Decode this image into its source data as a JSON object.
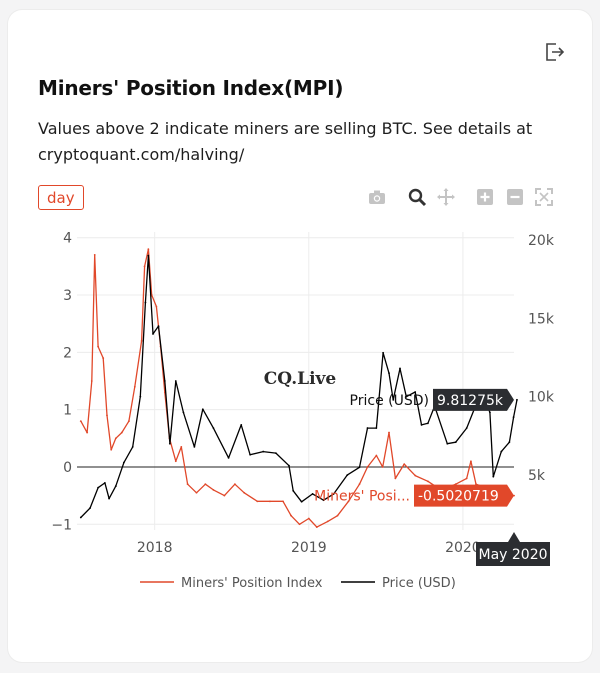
{
  "card": {
    "title": "Miners' Position Index(MPI)",
    "subtitle": "Values above 2 indicate miners are selling BTC. See details at cryptoquant.com/halving/",
    "interval_label": "day",
    "icons": [
      "export-icon",
      "camera-icon",
      "zoom-icon",
      "pan-icon",
      "zoom-in-icon",
      "zoom-out-icon",
      "autoscale-icon"
    ]
  },
  "watermark": "CQ.Live",
  "hover": {
    "price_label": "Price (USD)",
    "price_value": "9.81275k",
    "mpi_label": "Miners' Posi...",
    "mpi_value": "-0.5020719",
    "x_label": "May 2020"
  },
  "colors": {
    "mpi": "#e1482a",
    "price": "#000000",
    "hover_bg": "#2b2d31",
    "accent": "#e1482a"
  },
  "chart_data": {
    "type": "line",
    "x_range": [
      "2017-07",
      "2020-05"
    ],
    "x_ticks": [
      "2018",
      "2019",
      "2020"
    ],
    "y_left": {
      "range": [
        -1.1,
        4.1
      ],
      "ticks": [
        "4",
        "3",
        "2",
        "1",
        "0",
        "−1"
      ],
      "tick_values": [
        4,
        3,
        2,
        1,
        0,
        -1
      ]
    },
    "y_right": {
      "range": [
        1500,
        20500
      ],
      "ticks": [
        "20k",
        "15k",
        "10k",
        "5k"
      ],
      "tick_values": [
        20000,
        15000,
        10000,
        5000
      ]
    },
    "legend": "bottom",
    "series": [
      {
        "name": "Miners' Position Index",
        "axis": "left",
        "points": [
          [
            "2017-07-10",
            0.8
          ],
          [
            "2017-07-25",
            0.6
          ],
          [
            "2017-08-05",
            1.5
          ],
          [
            "2017-08-12",
            3.7
          ],
          [
            "2017-08-20",
            2.1
          ],
          [
            "2017-09-01",
            1.9
          ],
          [
            "2017-09-10",
            0.9
          ],
          [
            "2017-09-20",
            0.3
          ],
          [
            "2017-10-01",
            0.5
          ],
          [
            "2017-10-15",
            0.6
          ],
          [
            "2017-11-01",
            0.8
          ],
          [
            "2017-11-15",
            1.4
          ],
          [
            "2017-12-01",
            2.2
          ],
          [
            "2017-12-08",
            3.5
          ],
          [
            "2017-12-17",
            3.8
          ],
          [
            "2017-12-25",
            3.0
          ],
          [
            "2018-01-05",
            2.8
          ],
          [
            "2018-01-15",
            2.1
          ],
          [
            "2018-01-25",
            1.3
          ],
          [
            "2018-02-05",
            0.5
          ],
          [
            "2018-02-20",
            0.1
          ],
          [
            "2018-03-05",
            0.35
          ],
          [
            "2018-03-20",
            -0.3
          ],
          [
            "2018-04-10",
            -0.45
          ],
          [
            "2018-05-01",
            -0.3
          ],
          [
            "2018-05-20",
            -0.4
          ],
          [
            "2018-06-15",
            -0.5
          ],
          [
            "2018-07-10",
            -0.3
          ],
          [
            "2018-08-01",
            -0.45
          ],
          [
            "2018-09-01",
            -0.6
          ],
          [
            "2018-10-01",
            -0.6
          ],
          [
            "2018-11-01",
            -0.6
          ],
          [
            "2018-11-20",
            -0.85
          ],
          [
            "2018-12-10",
            -1.0
          ],
          [
            "2019-01-01",
            -0.9
          ],
          [
            "2019-01-20",
            -1.05
          ],
          [
            "2019-02-15",
            -0.95
          ],
          [
            "2019-03-10",
            -0.85
          ],
          [
            "2019-04-05",
            -0.6
          ],
          [
            "2019-05-01",
            -0.3
          ],
          [
            "2019-05-20",
            0.0
          ],
          [
            "2019-06-10",
            0.2
          ],
          [
            "2019-06-25",
            0.0
          ],
          [
            "2019-07-10",
            0.6
          ],
          [
            "2019-07-25",
            -0.2
          ],
          [
            "2019-08-15",
            0.05
          ],
          [
            "2019-09-10",
            -0.15
          ],
          [
            "2019-10-10",
            -0.25
          ],
          [
            "2019-11-10",
            -0.4
          ],
          [
            "2019-12-15",
            -0.3
          ],
          [
            "2020-01-10",
            -0.2
          ],
          [
            "2020-01-20",
            0.1
          ],
          [
            "2020-02-01",
            -0.3
          ],
          [
            "2020-02-20",
            -0.35
          ],
          [
            "2020-03-10",
            -0.45
          ],
          [
            "2020-03-25",
            -0.4
          ],
          [
            "2020-04-15",
            -0.5
          ],
          [
            "2020-05-01",
            -0.5
          ]
        ]
      },
      {
        "name": "Price (USD)",
        "axis": "right",
        "points": [
          [
            "2017-07-10",
            2300
          ],
          [
            "2017-08-01",
            2900
          ],
          [
            "2017-08-20",
            4200
          ],
          [
            "2017-09-05",
            4500
          ],
          [
            "2017-09-15",
            3500
          ],
          [
            "2017-10-01",
            4300
          ],
          [
            "2017-10-20",
            5800
          ],
          [
            "2017-11-10",
            6800
          ],
          [
            "2017-11-28",
            10000
          ],
          [
            "2017-12-10",
            16000
          ],
          [
            "2017-12-17",
            19000
          ],
          [
            "2017-12-28",
            14000
          ],
          [
            "2018-01-10",
            14500
          ],
          [
            "2018-01-25",
            11000
          ],
          [
            "2018-02-06",
            7000
          ],
          [
            "2018-02-20",
            11000
          ],
          [
            "2018-03-10",
            9000
          ],
          [
            "2018-04-05",
            6800
          ],
          [
            "2018-04-25",
            9200
          ],
          [
            "2018-05-20",
            8000
          ],
          [
            "2018-06-25",
            6100
          ],
          [
            "2018-07-25",
            8200
          ],
          [
            "2018-08-15",
            6300
          ],
          [
            "2018-09-15",
            6500
          ],
          [
            "2018-10-15",
            6400
          ],
          [
            "2018-11-15",
            5600
          ],
          [
            "2018-11-25",
            4000
          ],
          [
            "2018-12-15",
            3300
          ],
          [
            "2019-01-10",
            3800
          ],
          [
            "2019-02-05",
            3400
          ],
          [
            "2019-03-01",
            3800
          ],
          [
            "2019-04-02",
            5000
          ],
          [
            "2019-05-01",
            5500
          ],
          [
            "2019-05-20",
            8000
          ],
          [
            "2019-06-10",
            8000
          ],
          [
            "2019-06-26",
            12800
          ],
          [
            "2019-07-10",
            11500
          ],
          [
            "2019-07-20",
            9800
          ],
          [
            "2019-08-05",
            11800
          ],
          [
            "2019-08-20",
            10000
          ],
          [
            "2019-09-10",
            10300
          ],
          [
            "2019-09-25",
            8200
          ],
          [
            "2019-10-10",
            8300
          ],
          [
            "2019-10-26",
            9400
          ],
          [
            "2019-11-25",
            7000
          ],
          [
            "2019-12-15",
            7100
          ],
          [
            "2020-01-10",
            8000
          ],
          [
            "2020-02-13",
            10300
          ],
          [
            "2020-03-05",
            9000
          ],
          [
            "2020-03-13",
            4900
          ],
          [
            "2020-04-01",
            6500
          ],
          [
            "2020-04-20",
            7100
          ],
          [
            "2020-04-30",
            8700
          ],
          [
            "2020-05-08",
            9800
          ]
        ]
      }
    ]
  }
}
